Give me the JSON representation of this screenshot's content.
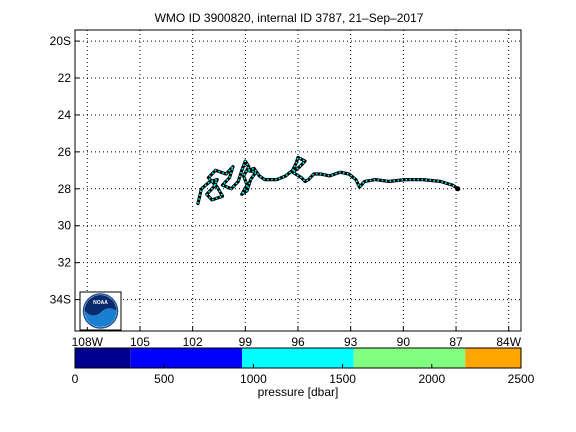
{
  "title": "WMO ID 3900820, internal ID 3787, 21–Sep–2017",
  "map": {
    "lon_ticks": [
      {
        "value": -108,
        "label": "108W"
      },
      {
        "value": -105,
        "label": "105"
      },
      {
        "value": -102,
        "label": "102"
      },
      {
        "value": -99,
        "label": "99"
      },
      {
        "value": -96,
        "label": "96"
      },
      {
        "value": -93,
        "label": "93"
      },
      {
        "value": -90,
        "label": "90"
      },
      {
        "value": -87,
        "label": "87"
      },
      {
        "value": -84,
        "label": "84W"
      }
    ],
    "lat_ticks": [
      {
        "value": -20,
        "label": "20S"
      },
      {
        "value": -22,
        "label": "22"
      },
      {
        "value": -24,
        "label": "24"
      },
      {
        "value": -26,
        "label": "26"
      },
      {
        "value": -28,
        "label": "28"
      },
      {
        "value": -30,
        "label": "30"
      },
      {
        "value": -32,
        "label": "32"
      },
      {
        "value": -34,
        "label": "34S"
      }
    ],
    "xlim": [
      -108.7,
      -83.3
    ],
    "ylim": [
      -35.7,
      -19.4
    ],
    "grid": true,
    "track_colors": [
      "#000000",
      "#00ffff"
    ],
    "logo": {
      "text": "NOAA",
      "position": "bottom-left"
    },
    "track": [
      [
        -101.7,
        -28.8
      ],
      [
        -101.6,
        -28.4
      ],
      [
        -101.5,
        -28.0
      ],
      [
        -101.0,
        -27.6
      ],
      [
        -100.6,
        -27.5
      ],
      [
        -100.8,
        -27.9
      ],
      [
        -101.2,
        -28.3
      ],
      [
        -100.9,
        -28.6
      ],
      [
        -100.3,
        -28.4
      ],
      [
        -100.6,
        -27.9
      ],
      [
        -101.1,
        -27.4
      ],
      [
        -100.7,
        -27.0
      ],
      [
        -100.1,
        -27.2
      ],
      [
        -99.7,
        -26.8
      ],
      [
        -99.9,
        -27.4
      ],
      [
        -100.3,
        -27.8
      ],
      [
        -99.8,
        -28.0
      ],
      [
        -99.4,
        -27.6
      ],
      [
        -99.2,
        -27.0
      ],
      [
        -99.0,
        -26.5
      ],
      [
        -98.8,
        -26.8
      ],
      [
        -99.1,
        -27.3
      ],
      [
        -98.9,
        -27.8
      ],
      [
        -99.2,
        -28.3
      ],
      [
        -98.9,
        -28.1
      ],
      [
        -98.7,
        -27.5
      ],
      [
        -98.4,
        -27.1
      ],
      [
        -98.9,
        -27.0
      ],
      [
        -98.5,
        -26.9
      ],
      [
        -98.2,
        -27.3
      ],
      [
        -97.9,
        -27.5
      ],
      [
        -97.2,
        -27.5
      ],
      [
        -96.7,
        -27.3
      ],
      [
        -96.3,
        -27.0
      ],
      [
        -96.1,
        -26.6
      ],
      [
        -96.0,
        -26.3
      ],
      [
        -95.6,
        -26.5
      ],
      [
        -95.9,
        -26.8
      ],
      [
        -96.3,
        -27.1
      ],
      [
        -95.8,
        -27.4
      ],
      [
        -95.6,
        -27.6
      ],
      [
        -95.4,
        -27.5
      ],
      [
        -95.1,
        -27.2
      ],
      [
        -94.7,
        -27.2
      ],
      [
        -94.2,
        -27.3
      ],
      [
        -93.6,
        -27.1
      ],
      [
        -93.1,
        -27.2
      ],
      [
        -92.7,
        -27.5
      ],
      [
        -92.5,
        -27.9
      ],
      [
        -92.2,
        -27.6
      ],
      [
        -91.6,
        -27.5
      ],
      [
        -90.8,
        -27.6
      ],
      [
        -89.9,
        -27.5
      ],
      [
        -88.9,
        -27.5
      ],
      [
        -87.9,
        -27.6
      ],
      [
        -87.2,
        -27.8
      ],
      [
        -86.9,
        -28.0
      ]
    ]
  },
  "colorbar": {
    "label": "pressure [dbar]",
    "ticks": [
      "0",
      "500",
      "1000",
      "1500",
      "2000",
      "2500"
    ],
    "range": [
      0,
      2500
    ],
    "segments": [
      {
        "from": 0,
        "to": 312,
        "color": "#00008f"
      },
      {
        "from": 312,
        "to": 937,
        "color": "#0000ff"
      },
      {
        "from": 937,
        "to": 1562,
        "color": "#00ffff"
      },
      {
        "from": 1562,
        "to": 2187,
        "color": "#80ff80"
      },
      {
        "from": 2187,
        "to": 2500,
        "color": "#ffa500"
      }
    ]
  }
}
